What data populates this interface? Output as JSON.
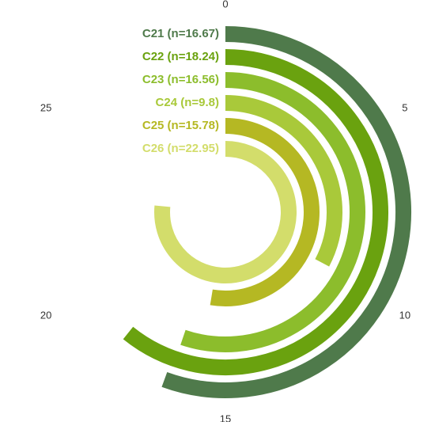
{
  "chart_data": {
    "type": "radial-bar",
    "axis": {
      "min": 0,
      "max": 30,
      "ticks": [
        "0",
        "5",
        "10",
        "15",
        "20",
        "25"
      ]
    },
    "series": [
      {
        "label": "C21 (n=16.67)",
        "value": 16.67,
        "color": "#4f7a4b"
      },
      {
        "label": "C22 (n=18.24)",
        "value": 18.24,
        "color": "#6aa20f"
      },
      {
        "label": "C23 (n=16.56)",
        "value": 16.56,
        "color": "#8cbd2c"
      },
      {
        "label": "C24 (n=9.8)",
        "value": 9.8,
        "color": "#a9c93a"
      },
      {
        "label": "C25 (n=15.78)",
        "value": 15.78,
        "color": "#b5b823"
      },
      {
        "label": "C26 (n=22.95)",
        "value": 22.95,
        "color": "#d3dd6b"
      }
    ]
  }
}
